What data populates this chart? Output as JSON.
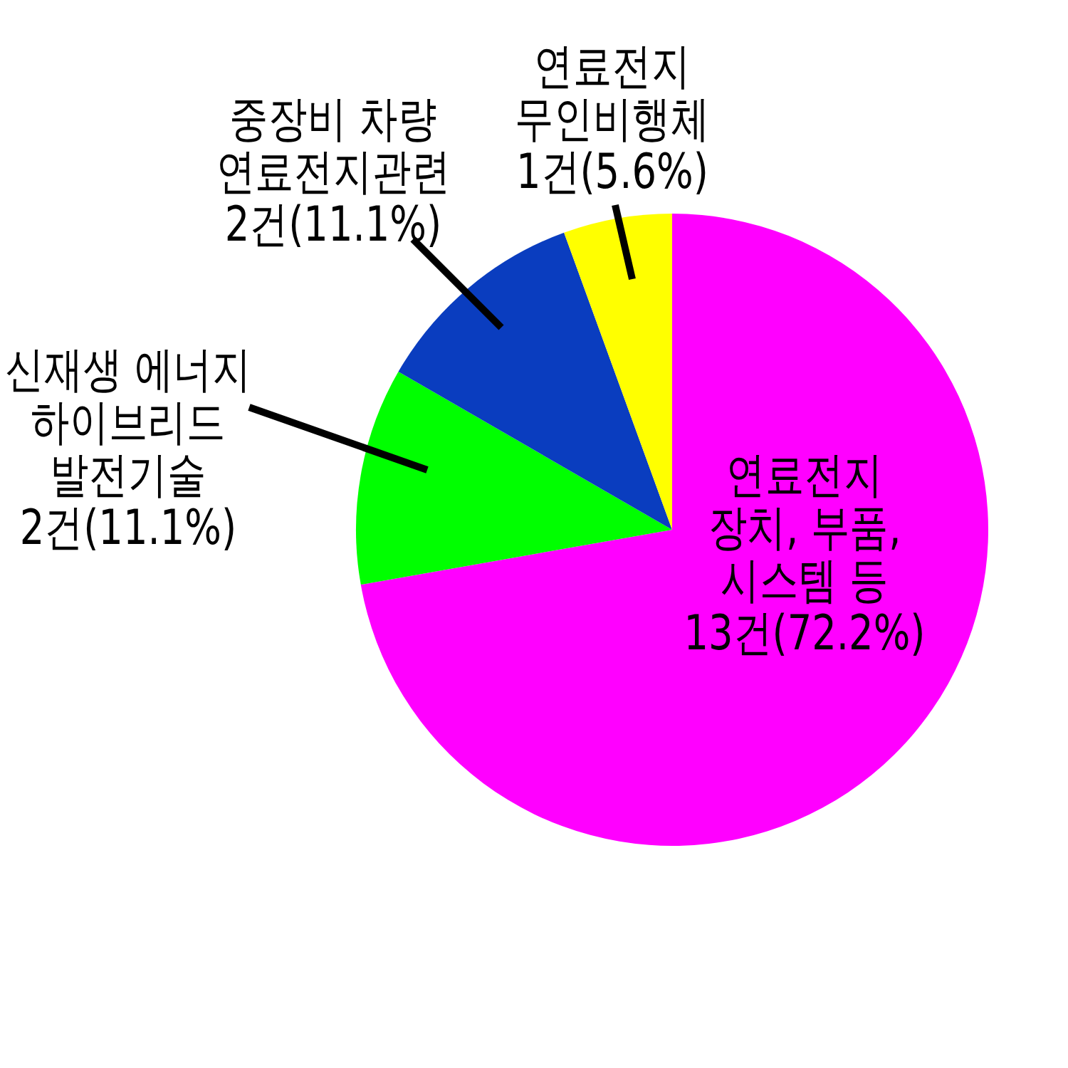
{
  "chart_data": {
    "type": "pie",
    "categories": [
      "연료전지 장치, 부품, 시스템 등",
      "신재생 에너지 하이브리드 발전기술",
      "중장비 차량 연료전지관련",
      "연료전지 무인비행체"
    ],
    "values": [
      13,
      2,
      2,
      1
    ],
    "colors": [
      "#ff00ff",
      "#00ff00",
      "#0a3dbf",
      "#ffff00"
    ],
    "value_labels": [
      "13건(72.2%)",
      "2건(11.1%)",
      "2건(11.1%)",
      "1건(5.6%)"
    ]
  }
}
